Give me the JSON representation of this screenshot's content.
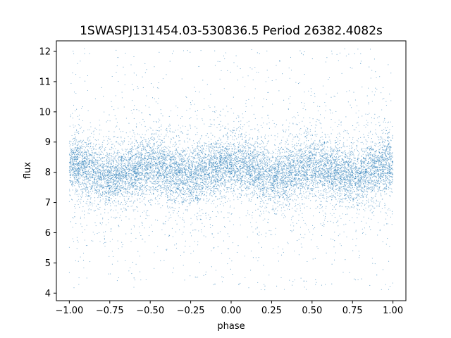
{
  "chart_data": {
    "type": "scatter",
    "title": "1SWASPJ131454.03-530836.5 Period 26382.4082s",
    "xlabel": "phase",
    "ylabel": "flux",
    "xlim": [
      -1.08,
      1.08
    ],
    "ylim": [
      3.75,
      12.35
    ],
    "xticks": [
      -1.0,
      -0.75,
      -0.5,
      -0.25,
      0.0,
      0.25,
      0.5,
      0.75,
      1.0
    ],
    "xtick_labels": [
      "−1.00",
      "−0.75",
      "−0.50",
      "−0.25",
      "0.00",
      "0.25",
      "0.50",
      "0.75",
      "1.00"
    ],
    "yticks": [
      4,
      5,
      6,
      7,
      8,
      9,
      10,
      11,
      12
    ],
    "ytick_labels": [
      "4",
      "5",
      "6",
      "7",
      "8",
      "9",
      "10",
      "11",
      "12"
    ],
    "grid": false,
    "legend": "none",
    "marker_color": "#1f77b4",
    "series": [
      {
        "x_range": [
          -1.0,
          1.0
        ],
        "y_range": [
          4.1,
          12.1
        ],
        "median_flux": 8.05,
        "core_flux_band": [
          7.0,
          9.2
        ],
        "flux_minima_phase": [
          -0.65,
          -0.35,
          0.35,
          0.65
        ],
        "flux_maxima_phase": [
          -1.0,
          -0.5,
          0.0,
          0.5,
          1.0
        ],
        "points": [
          [
            -0.98,
            8.1
          ],
          [
            -0.9,
            8.3
          ],
          [
            -0.82,
            7.9
          ],
          [
            -0.75,
            8.0
          ],
          [
            -0.62,
            7.6
          ],
          [
            -0.5,
            8.3
          ],
          [
            -0.38,
            7.7
          ],
          [
            -0.25,
            8.1
          ],
          [
            -0.12,
            8.2
          ],
          [
            0.0,
            8.2
          ],
          [
            0.12,
            8.1
          ],
          [
            0.25,
            8.0
          ],
          [
            0.38,
            7.7
          ],
          [
            0.5,
            8.3
          ],
          [
            0.62,
            7.6
          ],
          [
            0.75,
            8.0
          ],
          [
            0.88,
            8.2
          ],
          [
            0.98,
            8.1
          ],
          [
            -0.7,
            11.8
          ],
          [
            -0.2,
            11.5
          ],
          [
            0.3,
            11.7
          ],
          [
            0.8,
            11.6
          ],
          [
            -0.6,
            4.5
          ],
          [
            -0.1,
            4.3
          ],
          [
            0.45,
            4.4
          ],
          [
            0.9,
            4.6
          ]
        ]
      }
    ]
  }
}
